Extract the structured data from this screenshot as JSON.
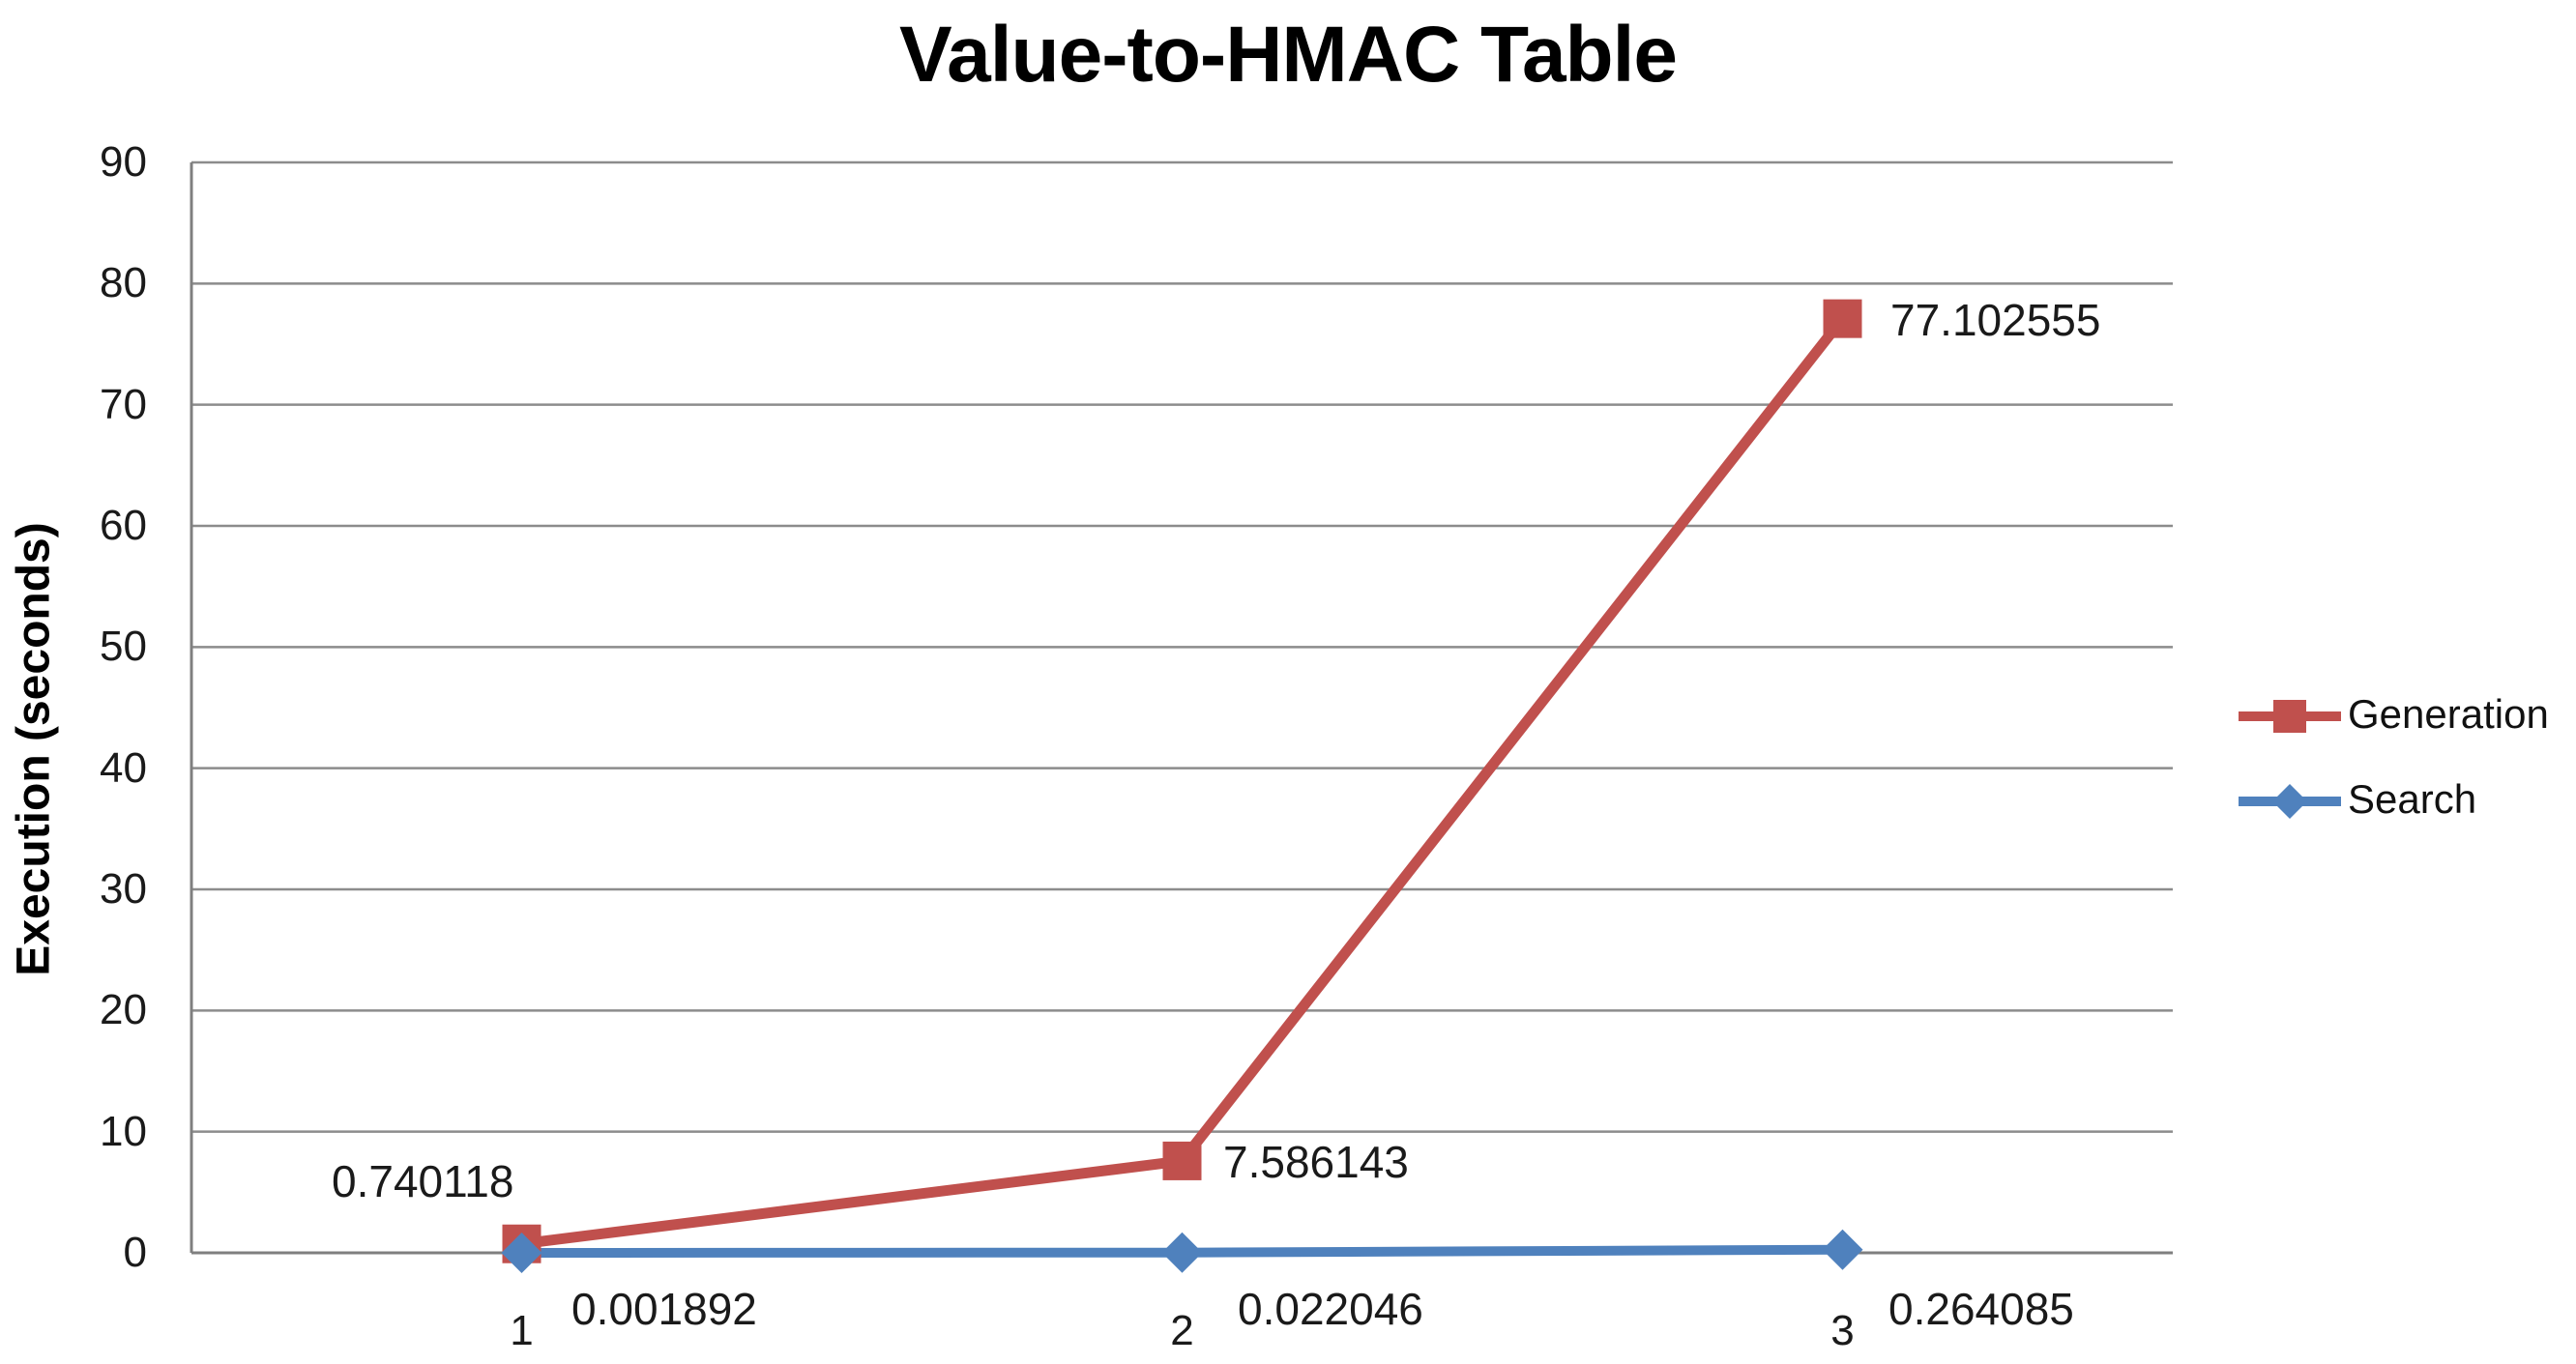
{
  "chart_data": {
    "type": "line",
    "title": "Value-to-HMAC Table",
    "xlabel": "",
    "ylabel": "Execution (seconds)",
    "categories": [
      "1",
      "2",
      "3"
    ],
    "ylim": [
      0,
      90
    ],
    "ytick_step": 10,
    "yticks": [
      0,
      10,
      20,
      30,
      40,
      50,
      60,
      70,
      80,
      90
    ],
    "grid": true,
    "legend_position": "right",
    "series": [
      {
        "name": "Generation",
        "color": "#C0504D",
        "marker": "square",
        "values": [
          0.740118,
          7.586143,
          77.102555
        ],
        "data_labels": [
          "0.740118",
          "7.586143",
          "77.102555"
        ]
      },
      {
        "name": "Search",
        "color": "#4F81BD",
        "marker": "diamond",
        "values": [
          0.001892,
          0.022046,
          0.264085
        ],
        "data_labels": [
          "0.001892",
          "0.022046",
          "0.264085"
        ]
      }
    ],
    "colors": {
      "gridline": "#8C8C8C",
      "axis": "#7F7F7F",
      "text": "#1A1A1A",
      "title": "#000000"
    }
  }
}
